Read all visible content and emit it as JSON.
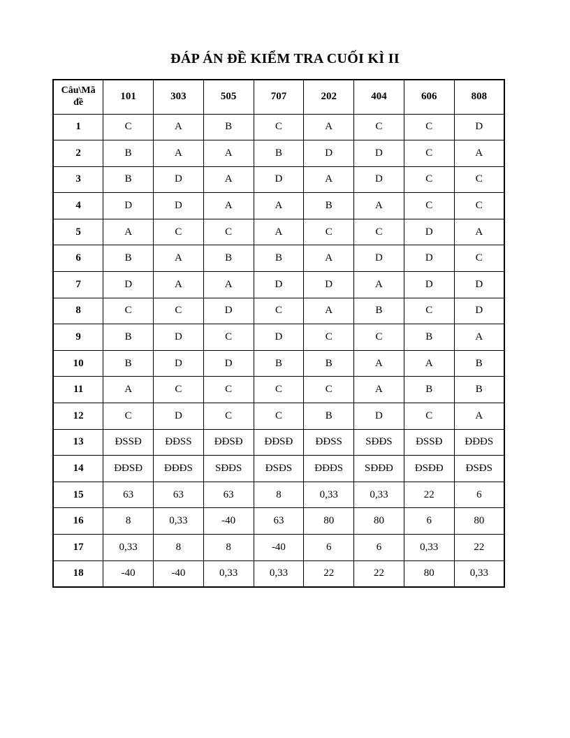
{
  "title": "ĐÁP ÁN ĐỀ KIỂM TRA CUỐI KÌ II",
  "table": {
    "corner_label": "Câu\\Mã đề",
    "codes": [
      "101",
      "303",
      "505",
      "707",
      "202",
      "404",
      "606",
      "808"
    ],
    "rows": [
      {
        "q": "1",
        "answers": [
          "C",
          "A",
          "B",
          "C",
          "A",
          "C",
          "C",
          "D"
        ]
      },
      {
        "q": "2",
        "answers": [
          "B",
          "A",
          "A",
          "B",
          "D",
          "D",
          "C",
          "A"
        ]
      },
      {
        "q": "3",
        "answers": [
          "B",
          "D",
          "A",
          "D",
          "A",
          "D",
          "C",
          "C"
        ]
      },
      {
        "q": "4",
        "answers": [
          "D",
          "D",
          "A",
          "A",
          "B",
          "A",
          "C",
          "C"
        ]
      },
      {
        "q": "5",
        "answers": [
          "A",
          "C",
          "C",
          "A",
          "C",
          "C",
          "D",
          "A"
        ]
      },
      {
        "q": "6",
        "answers": [
          "B",
          "A",
          "B",
          "B",
          "A",
          "D",
          "D",
          "C"
        ]
      },
      {
        "q": "7",
        "answers": [
          "D",
          "A",
          "A",
          "D",
          "D",
          "A",
          "D",
          "D"
        ]
      },
      {
        "q": "8",
        "answers": [
          "C",
          "C",
          "D",
          "C",
          "A",
          "B",
          "C",
          "D"
        ]
      },
      {
        "q": "9",
        "answers": [
          "B",
          "D",
          "C",
          "D",
          "C",
          "C",
          "B",
          "A"
        ]
      },
      {
        "q": "10",
        "answers": [
          "B",
          "D",
          "D",
          "B",
          "B",
          "A",
          "A",
          "B"
        ]
      },
      {
        "q": "11",
        "answers": [
          "A",
          "C",
          "C",
          "C",
          "C",
          "A",
          "B",
          "B"
        ]
      },
      {
        "q": "12",
        "answers": [
          "C",
          "D",
          "C",
          "C",
          "B",
          "D",
          "C",
          "A"
        ]
      },
      {
        "q": "13",
        "answers": [
          "ĐSSĐ",
          "ĐĐSS",
          "ĐĐSĐ",
          "ĐĐSĐ",
          "ĐĐSS",
          "SĐĐS",
          "ĐSSĐ",
          "ĐĐĐS"
        ]
      },
      {
        "q": "14",
        "answers": [
          "ĐĐSĐ",
          "ĐĐĐS",
          "SĐĐS",
          "ĐSĐS",
          "ĐĐĐS",
          "SĐĐĐ",
          "ĐSĐĐ",
          "ĐSĐS"
        ]
      },
      {
        "q": "15",
        "answers": [
          "63",
          "63",
          "63",
          "8",
          "0,33",
          "0,33",
          "22",
          "6"
        ]
      },
      {
        "q": "16",
        "answers": [
          "8",
          "0,33",
          "-40",
          "63",
          "80",
          "80",
          "6",
          "80"
        ]
      },
      {
        "q": "17",
        "answers": [
          "0,33",
          "8",
          "8",
          "-40",
          "6",
          "6",
          "0,33",
          "22"
        ]
      },
      {
        "q": "18",
        "answers": [
          "-40",
          "-40",
          "0,33",
          "0,33",
          "22",
          "22",
          "80",
          "0,33"
        ]
      }
    ]
  }
}
